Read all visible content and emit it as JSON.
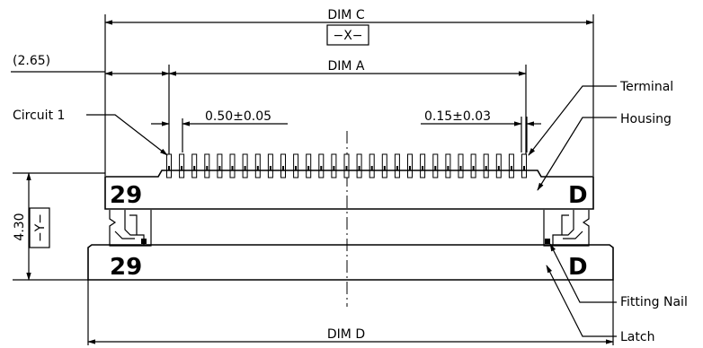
{
  "dimensions": {
    "dim_c": "DIM C",
    "datum_x": "−X−",
    "ref_width": "(2.65)",
    "dim_a": "DIM A",
    "pitch": "0.50±0.05",
    "terminal_width": "0.15±0.03",
    "height": "4.30",
    "datum_y": "−Y−",
    "dim_d": "DIM D"
  },
  "callouts": {
    "circuit_1": "Circuit 1",
    "terminal": "Terminal",
    "housing": "Housing",
    "fitting_nail": "Fitting Nail",
    "latch": "Latch"
  },
  "markings": {
    "housing_left": "29",
    "housing_right": "D",
    "latch_left": "29",
    "latch_right": "D"
  }
}
